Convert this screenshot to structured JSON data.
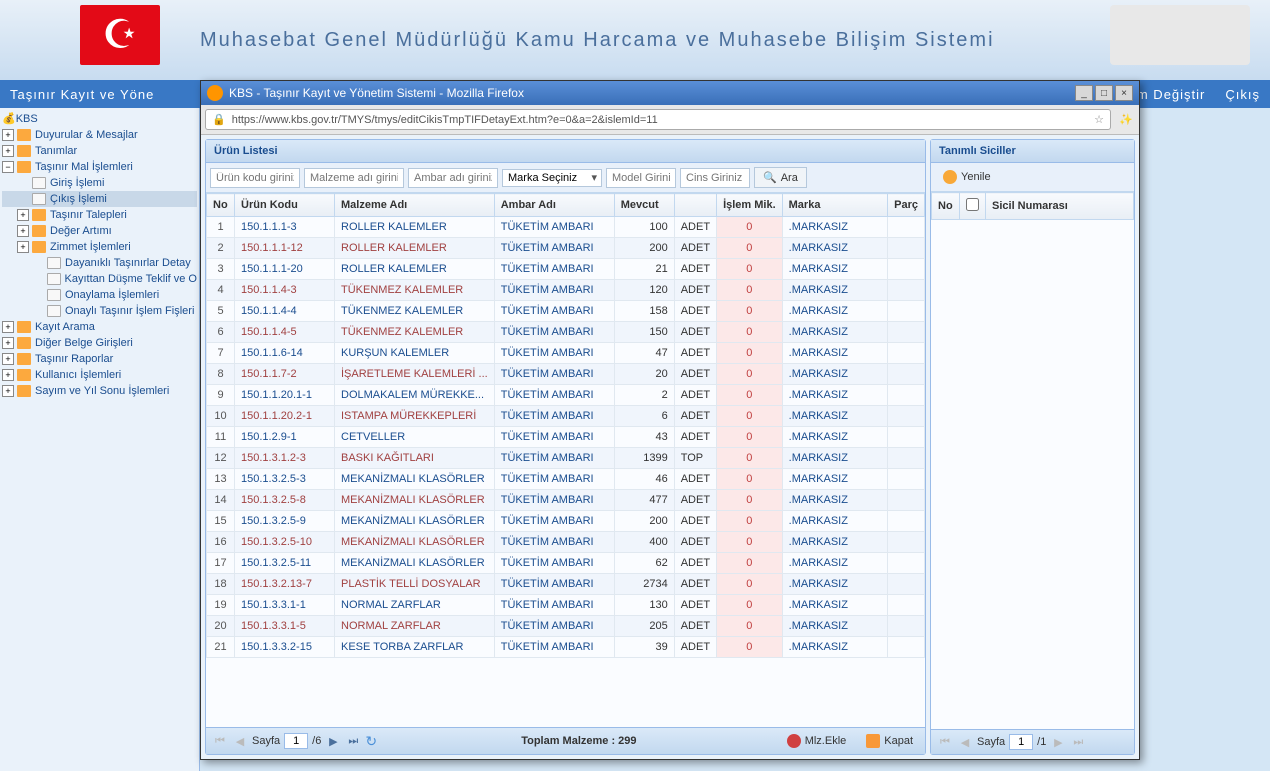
{
  "banner": {
    "title": "Muhasebat Genel Müdürlüğü Kamu Harcama ve Muhasebe Bilişim Sistemi"
  },
  "menubar": {
    "left": "Taşınır Kayıt ve Yöne",
    "change": "m Değiştir",
    "exit": "Çıkış"
  },
  "tree": {
    "root": "KBS",
    "items": [
      {
        "exp": "+",
        "label": "Duyurular & Mesajlar",
        "depth": 0
      },
      {
        "exp": "+",
        "label": "Tanımlar",
        "depth": 0
      },
      {
        "exp": "−",
        "label": "Taşınır Mal İşlemleri",
        "depth": 0
      },
      {
        "exp": "",
        "label": "Giriş İşlemi",
        "depth": 1,
        "page": true
      },
      {
        "exp": "",
        "label": "Çıkış İşlemi",
        "depth": 1,
        "page": true,
        "selected": true
      },
      {
        "exp": "+",
        "label": "Taşınır Talepleri",
        "depth": 1
      },
      {
        "exp": "+",
        "label": "Değer Artımı",
        "depth": 1
      },
      {
        "exp": "+",
        "label": "Zimmet İşlemleri",
        "depth": 1
      },
      {
        "exp": "",
        "label": "Dayanıklı Taşınırlar Detay",
        "depth": 2,
        "page": true
      },
      {
        "exp": "",
        "label": "Kayıttan Düşme Teklif ve O",
        "depth": 2,
        "page": true
      },
      {
        "exp": "",
        "label": "Onaylama İşlemleri",
        "depth": 2,
        "page": true
      },
      {
        "exp": "",
        "label": "Onaylı Taşınır İşlem Fişleri",
        "depth": 2,
        "page": true
      },
      {
        "exp": "+",
        "label": "Kayıt Arama",
        "depth": 0
      },
      {
        "exp": "+",
        "label": "Diğer Belge Girişleri",
        "depth": 0
      },
      {
        "exp": "+",
        "label": "Taşınır Raporlar",
        "depth": 0
      },
      {
        "exp": "+",
        "label": "Kullanıcı İşlemleri",
        "depth": 0
      },
      {
        "exp": "+",
        "label": "Sayım ve Yıl Sonu İşlemleri",
        "depth": 0
      }
    ]
  },
  "popup": {
    "title": "KBS - Taşınır Kayıt ve Yönetim Sistemi - Mozilla Firefox",
    "url": "https://www.kbs.gov.tr/TMYS/tmys/editCikisTmpTIFDetayExt.htm?e=0&a=2&islemId=11"
  },
  "leftPanel": {
    "title": "Ürün Listesi",
    "filters": {
      "code_ph": "Ürün kodu giriniz",
      "name_ph": "Malzeme adı giriniz",
      "ambar_ph": "Ambar adı giriniz",
      "marka": "Marka Seçiniz",
      "model_ph": "Model Giriniz",
      "cins_ph": "Cins Giriniz",
      "search": "Ara"
    },
    "cols": {
      "no": "No",
      "code": "Ürün Kodu",
      "name": "Malzeme Adı",
      "ambar": "Ambar Adı",
      "mevcut": "Mevcut",
      "islem": "İşlem Mik.",
      "marka": "Marka",
      "parca": "Parç"
    },
    "rows": [
      {
        "no": 1,
        "code": "150.1.1.1-3",
        "name": "ROLLER KALEMLER",
        "ambar": "TÜKETİM AMBARI",
        "mevcut": 100,
        "unit": "ADET",
        "islem": 0,
        "marka": ".MARKASIZ"
      },
      {
        "no": 2,
        "code": "150.1.1.1-12",
        "name": "ROLLER KALEMLER",
        "ambar": "TÜKETİM AMBARI",
        "mevcut": 200,
        "unit": "ADET",
        "islem": 0,
        "marka": ".MARKASIZ"
      },
      {
        "no": 3,
        "code": "150.1.1.1-20",
        "name": "ROLLER KALEMLER",
        "ambar": "TÜKETİM AMBARI",
        "mevcut": 21,
        "unit": "ADET",
        "islem": 0,
        "marka": ".MARKASIZ"
      },
      {
        "no": 4,
        "code": "150.1.1.4-3",
        "name": "TÜKENMEZ KALEMLER",
        "ambar": "TÜKETİM AMBARI",
        "mevcut": 120,
        "unit": "ADET",
        "islem": 0,
        "marka": ".MARKASIZ"
      },
      {
        "no": 5,
        "code": "150.1.1.4-4",
        "name": "TÜKENMEZ KALEMLER",
        "ambar": "TÜKETİM AMBARI",
        "mevcut": 158,
        "unit": "ADET",
        "islem": 0,
        "marka": ".MARKASIZ"
      },
      {
        "no": 6,
        "code": "150.1.1.4-5",
        "name": "TÜKENMEZ KALEMLER",
        "ambar": "TÜKETİM AMBARI",
        "mevcut": 150,
        "unit": "ADET",
        "islem": 0,
        "marka": ".MARKASIZ"
      },
      {
        "no": 7,
        "code": "150.1.1.6-14",
        "name": "KURŞUN KALEMLER",
        "ambar": "TÜKETİM AMBARI",
        "mevcut": 47,
        "unit": "ADET",
        "islem": 0,
        "marka": ".MARKASIZ"
      },
      {
        "no": 8,
        "code": "150.1.1.7-2",
        "name": "İŞARETLEME KALEMLERİ ...",
        "ambar": "TÜKETİM AMBARI",
        "mevcut": 20,
        "unit": "ADET",
        "islem": 0,
        "marka": ".MARKASIZ"
      },
      {
        "no": 9,
        "code": "150.1.1.20.1-1",
        "name": "DOLMAKALEM MÜREKKE...",
        "ambar": "TÜKETİM AMBARI",
        "mevcut": 2,
        "unit": "ADET",
        "islem": 0,
        "marka": ".MARKASIZ"
      },
      {
        "no": 10,
        "code": "150.1.1.20.2-1",
        "name": "ISTAMPA MÜREKKEPLERİ",
        "ambar": "TÜKETİM AMBARI",
        "mevcut": 6,
        "unit": "ADET",
        "islem": 0,
        "marka": ".MARKASIZ"
      },
      {
        "no": 11,
        "code": "150.1.2.9-1",
        "name": "CETVELLER",
        "ambar": "TÜKETİM AMBARI",
        "mevcut": 43,
        "unit": "ADET",
        "islem": 0,
        "marka": ".MARKASIZ"
      },
      {
        "no": 12,
        "code": "150.1.3.1.2-3",
        "name": "BASKI KAĞITLARI",
        "ambar": "TÜKETİM AMBARI",
        "mevcut": 1399,
        "unit": "TOP",
        "islem": 0,
        "marka": ".MARKASIZ"
      },
      {
        "no": 13,
        "code": "150.1.3.2.5-3",
        "name": "MEKANİZMALI KLASÖRLER",
        "ambar": "TÜKETİM AMBARI",
        "mevcut": 46,
        "unit": "ADET",
        "islem": 0,
        "marka": ".MARKASIZ"
      },
      {
        "no": 14,
        "code": "150.1.3.2.5-8",
        "name": "MEKANİZMALI KLASÖRLER",
        "ambar": "TÜKETİM AMBARI",
        "mevcut": 477,
        "unit": "ADET",
        "islem": 0,
        "marka": ".MARKASIZ"
      },
      {
        "no": 15,
        "code": "150.1.3.2.5-9",
        "name": "MEKANİZMALI KLASÖRLER",
        "ambar": "TÜKETİM AMBARI",
        "mevcut": 200,
        "unit": "ADET",
        "islem": 0,
        "marka": ".MARKASIZ"
      },
      {
        "no": 16,
        "code": "150.1.3.2.5-10",
        "name": "MEKANİZMALI KLASÖRLER",
        "ambar": "TÜKETİM AMBARI",
        "mevcut": 400,
        "unit": "ADET",
        "islem": 0,
        "marka": ".MARKASIZ"
      },
      {
        "no": 17,
        "code": "150.1.3.2.5-11",
        "name": "MEKANİZMALI KLASÖRLER",
        "ambar": "TÜKETİM AMBARI",
        "mevcut": 62,
        "unit": "ADET",
        "islem": 0,
        "marka": ".MARKASIZ"
      },
      {
        "no": 18,
        "code": "150.1.3.2.13-7",
        "name": "PLASTİK TELLİ DOSYALAR",
        "ambar": "TÜKETİM AMBARI",
        "mevcut": 2734,
        "unit": "ADET",
        "islem": 0,
        "marka": ".MARKASIZ"
      },
      {
        "no": 19,
        "code": "150.1.3.3.1-1",
        "name": "NORMAL ZARFLAR",
        "ambar": "TÜKETİM AMBARI",
        "mevcut": 130,
        "unit": "ADET",
        "islem": 0,
        "marka": ".MARKASIZ"
      },
      {
        "no": 20,
        "code": "150.1.3.3.1-5",
        "name": "NORMAL ZARFLAR",
        "ambar": "TÜKETİM AMBARI",
        "mevcut": 205,
        "unit": "ADET",
        "islem": 0,
        "marka": ".MARKASIZ"
      },
      {
        "no": 21,
        "code": "150.1.3.3.2-15",
        "name": "KESE TORBA ZARFLAR",
        "ambar": "TÜKETİM AMBARI",
        "mevcut": 39,
        "unit": "ADET",
        "islem": 0,
        "marka": ".MARKASIZ"
      }
    ],
    "pager": {
      "label": "Sayfa",
      "page": "1",
      "total": "/6"
    },
    "footer": {
      "total_label": "Toplam Malzeme : 299",
      "add": "Mlz.Ekle",
      "close": "Kapat"
    }
  },
  "rightPanel": {
    "title": "Tanımlı Siciller",
    "refresh": "Yenile",
    "cols": {
      "no": "No",
      "sicil": "Sicil Numarası"
    },
    "pager": {
      "label": "Sayfa",
      "page": "1",
      "total": "/1"
    }
  }
}
